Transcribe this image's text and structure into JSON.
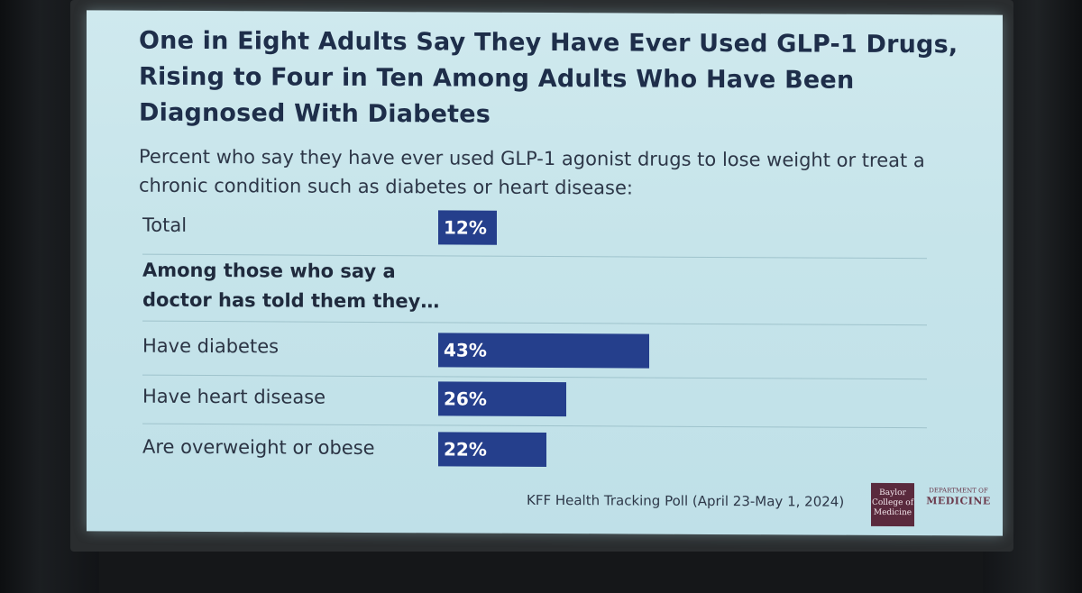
{
  "slide": {
    "title": "One in Eight Adults Say They Have Ever Used GLP-1 Drugs, Rising to Four in Ten Among Adults Who Have Been Diagnosed With Diabetes",
    "subtitle": "Percent who say they have ever used GLP-1 agonist drugs to lose weight or treat a chronic condition such as diabetes or heart disease:",
    "group_heading": "Among those who say a doctor has told them they…",
    "source": "KFF Health Tracking Poll (April 23-May 1, 2024)"
  },
  "chart_data": {
    "type": "bar",
    "orientation": "horizontal",
    "categories": [
      "Total",
      "Have diabetes",
      "Have heart disease",
      "Are overweight or obese"
    ],
    "values": [
      12,
      43,
      26,
      22
    ],
    "value_labels": [
      "12%",
      "43%",
      "26%",
      "22%"
    ],
    "bar_color": "#253f8c"
  },
  "logos": {
    "left_text": "Baylor College of Medicine",
    "right_top": "DEPARTMENT OF",
    "right_main": "MEDICINE"
  },
  "colors": {
    "screen": "#c6e4ea",
    "title": "#1e2e4a",
    "bar": "#253f8c"
  }
}
